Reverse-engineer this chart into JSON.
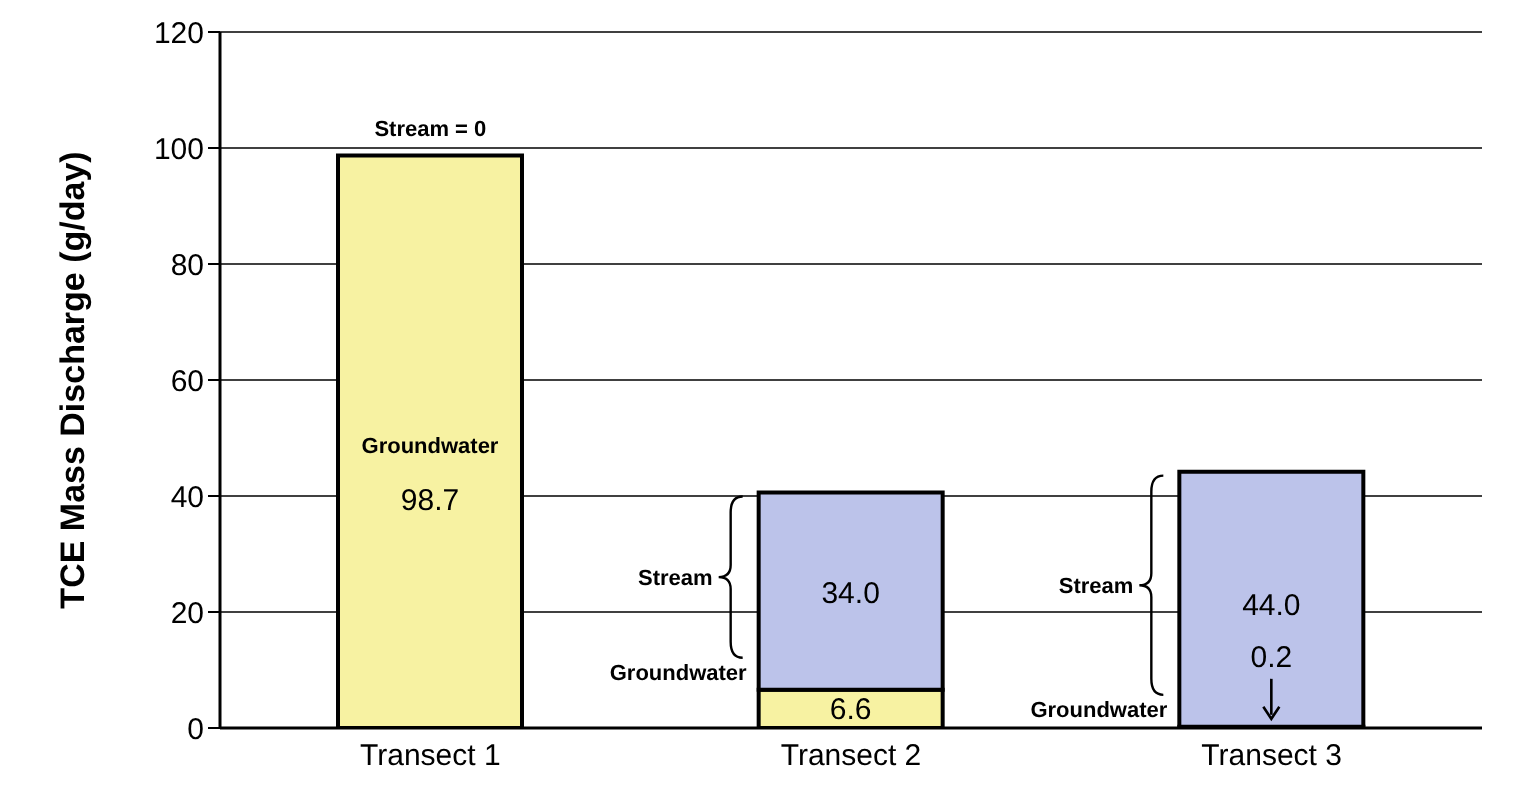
{
  "chart_data": {
    "type": "bar",
    "stacked": true,
    "ylabel": "TCE Mass Discharge (g/day)",
    "categories": [
      "Transect 1",
      "Transect 2",
      "Transect 3"
    ],
    "series": [
      {
        "name": "Groundwater",
        "color": "#f7f2a2",
        "values": [
          98.7,
          6.6,
          0.2
        ],
        "value_labels": [
          "98.7",
          "6.6",
          "0.2"
        ]
      },
      {
        "name": "Stream",
        "color": "#bcc3ea",
        "values": [
          0,
          34.0,
          44.0
        ],
        "value_labels": [
          null,
          "34.0",
          "44.0"
        ]
      }
    ],
    "ylim": [
      0,
      120
    ],
    "yticks": [
      0,
      20,
      40,
      60,
      80,
      100,
      120
    ],
    "grid": "y",
    "annotations": [
      {
        "text": "Stream = 0",
        "x": "Transect 1",
        "y": 98.7
      }
    ]
  }
}
